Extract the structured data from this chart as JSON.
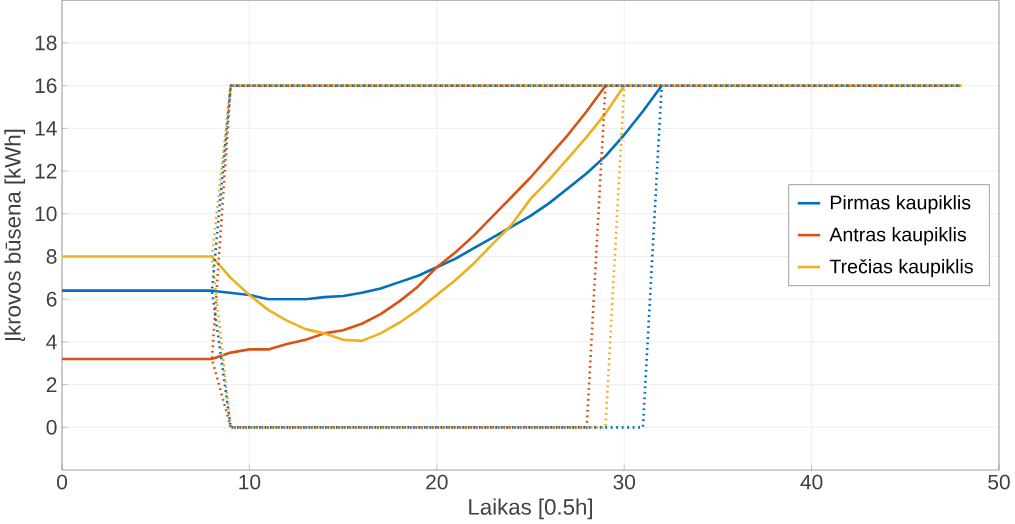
{
  "chart_data": {
    "type": "line",
    "xlabel": "Laikas [0.5h]",
    "ylabel": "Įkrovos būsena [kWh]",
    "xlim": [
      0,
      50
    ],
    "ylim": [
      -2,
      20
    ],
    "xticks": [
      0,
      10,
      20,
      30,
      40,
      50
    ],
    "yticks": [
      0,
      2,
      4,
      6,
      8,
      10,
      12,
      14,
      16,
      18
    ],
    "grid": true,
    "legend": "right",
    "line_style": "solid",
    "marker": "none",
    "series": [
      {
        "name": "Pirmas kaupiklis",
        "color": "#0072bd",
        "x": [
          0,
          1,
          2,
          3,
          4,
          5,
          6,
          7,
          8,
          9,
          10,
          11,
          12,
          13,
          14,
          15,
          16,
          17,
          18,
          19,
          20,
          21,
          22,
          23,
          24,
          25,
          26,
          27,
          28,
          29,
          30,
          31,
          32
        ],
        "values": [
          6.4,
          6.4,
          6.4,
          6.4,
          6.4,
          6.4,
          6.4,
          6.4,
          6.4,
          6.3,
          6.2,
          6.0,
          6.0,
          6.0,
          6.1,
          6.15,
          6.3,
          6.5,
          6.8,
          7.1,
          7.5,
          7.9,
          8.4,
          8.9,
          9.4,
          9.9,
          10.5,
          11.2,
          11.9,
          12.7,
          13.7,
          14.8,
          16
        ]
      },
      {
        "name": "Antras kaupiklis",
        "color": "#d95319",
        "x": [
          0,
          1,
          2,
          3,
          4,
          5,
          6,
          7,
          8,
          9,
          10,
          11,
          12,
          13,
          14,
          15,
          16,
          17,
          18,
          19,
          20,
          21,
          22,
          23,
          24,
          25,
          26,
          27,
          28,
          29
        ],
        "values": [
          3.2,
          3.2,
          3.2,
          3.2,
          3.2,
          3.2,
          3.2,
          3.2,
          3.2,
          3.5,
          3.65,
          3.65,
          3.9,
          4.1,
          4.4,
          4.55,
          4.85,
          5.3,
          5.9,
          6.6,
          7.5,
          8.2,
          9.0,
          9.9,
          10.8,
          11.7,
          12.7,
          13.7,
          14.8,
          16
        ]
      },
      {
        "name": "Trečias kaupiklis",
        "color": "#edb120",
        "x": [
          0,
          1,
          2,
          3,
          4,
          5,
          6,
          7,
          8,
          9,
          10,
          11,
          12,
          13,
          14,
          15,
          16,
          17,
          18,
          19,
          20,
          21,
          22,
          23,
          24,
          25,
          26,
          27,
          28,
          29,
          30
        ],
        "values": [
          8,
          8,
          8,
          8,
          8,
          8,
          8,
          8,
          8,
          7.0,
          6.2,
          5.5,
          5.0,
          4.6,
          4.4,
          4.1,
          4.05,
          4.4,
          4.9,
          5.5,
          6.2,
          6.9,
          7.7,
          8.6,
          9.5,
          10.7,
          11.6,
          12.6,
          13.6,
          14.7,
          16
        ]
      },
      {
        "color": "#edb120",
        "line_style": "dotted",
        "x": [
          48,
          9,
          8,
          9,
          29,
          30
        ],
        "values": [
          16,
          16,
          8,
          0,
          0,
          16
        ]
      },
      {
        "color": "#d95319",
        "line_style": "dotted",
        "x": [
          48,
          9,
          8,
          9,
          28,
          29
        ],
        "values": [
          16,
          16,
          3.2,
          0,
          0,
          16
        ]
      },
      {
        "color": "#0072bd",
        "line_style": "dotted",
        "x": [
          48,
          9,
          8,
          9,
          31,
          32
        ],
        "values": [
          16,
          16,
          6.4,
          0,
          0,
          16
        ]
      }
    ]
  }
}
